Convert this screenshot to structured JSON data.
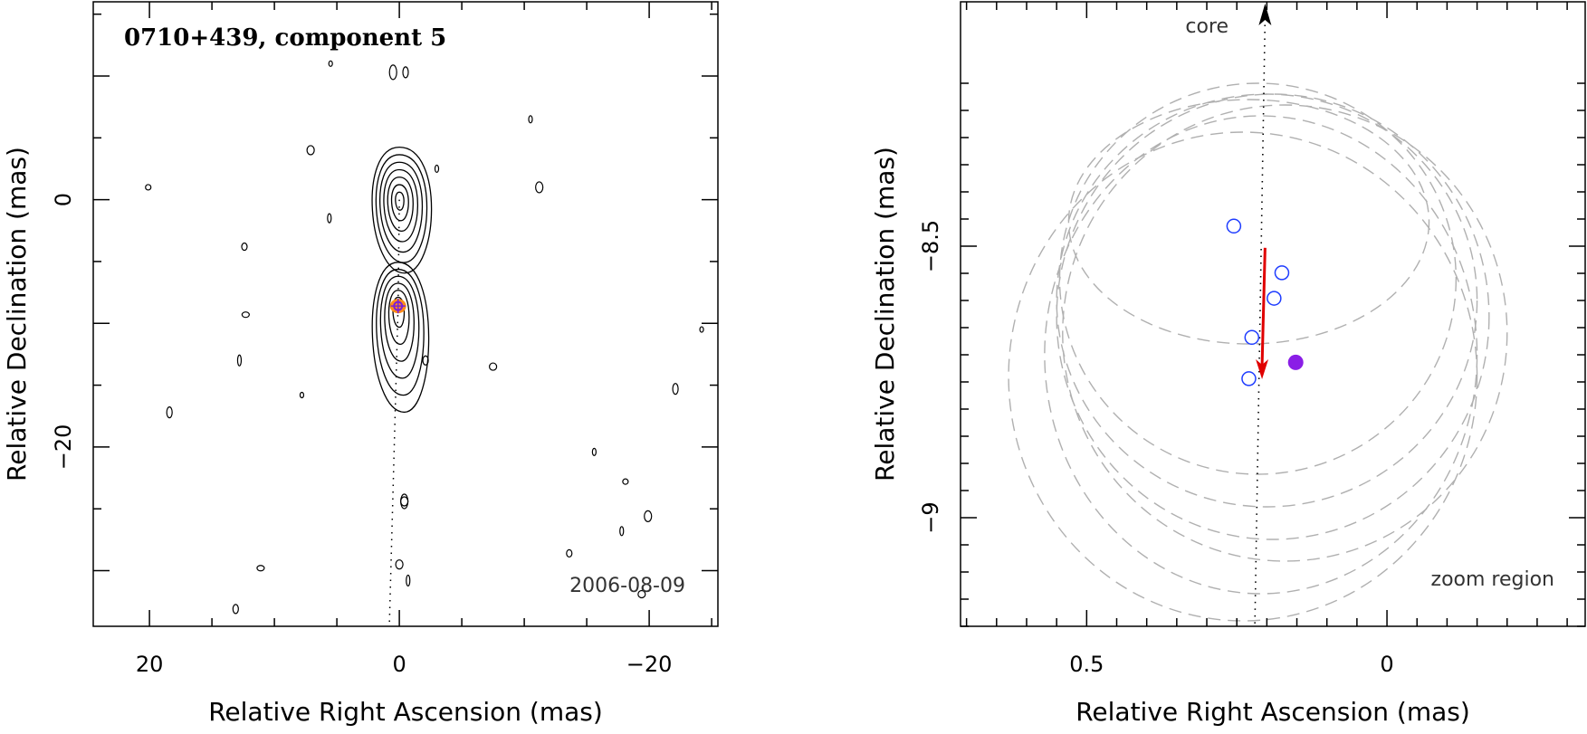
{
  "chart_data": [
    {
      "type": "contour",
      "title": "0710+439, component 5",
      "date_label": "2006-08-09",
      "xlabel": "Relative Right Ascension (mas)",
      "ylabel": "Relative Declination (mas)",
      "xlim": [
        24.5,
        -25.5
      ],
      "ylim": [
        -34.5,
        16
      ],
      "xticks": [
        {
          "v": 20,
          "label": "20"
        },
        {
          "v": 0,
          "label": "0"
        },
        {
          "v": -20,
          "label": "−20"
        }
      ],
      "yticks": [
        {
          "v": 0,
          "label": "0"
        },
        {
          "v": -20,
          "label": "−20"
        }
      ],
      "core": {
        "x": 0,
        "y": 0,
        "levels": [
          0.4,
          0.8,
          1.2,
          1.6,
          2.0,
          2.4,
          2.8
        ]
      },
      "component": {
        "x": 0.1,
        "y": -8.6,
        "levels": [
          0.5,
          0.9,
          1.3,
          1.7,
          2.1,
          2.5
        ]
      },
      "noise_islands": [
        {
          "x": 5.5,
          "y": 11
        },
        {
          "x": -0.5,
          "y": 10.3
        },
        {
          "x": 7.1,
          "y": 4
        },
        {
          "x": -10.5,
          "y": 6.5
        },
        {
          "x": 20.1,
          "y": 1
        },
        {
          "x": -11.2,
          "y": 1
        },
        {
          "x": 5.6,
          "y": -1.5
        },
        {
          "x": 12.4,
          "y": -3.8
        },
        {
          "x": 12.3,
          "y": -9.3
        },
        {
          "x": 12.8,
          "y": -13
        },
        {
          "x": -2.1,
          "y": -13
        },
        {
          "x": -7.5,
          "y": -13.5
        },
        {
          "x": 7.8,
          "y": -15.8
        },
        {
          "x": 18.4,
          "y": -17.2
        },
        {
          "x": -0.4,
          "y": -24.4
        },
        {
          "x": -15.6,
          "y": -20.4
        },
        {
          "x": -18.1,
          "y": -22.8
        },
        {
          "x": -19.9,
          "y": -25.6
        },
        {
          "x": -17.8,
          "y": -26.8
        },
        {
          "x": -13.6,
          "y": -28.6
        },
        {
          "x": 11.1,
          "y": -29.8
        },
        {
          "x": -0.7,
          "y": -30.8
        },
        {
          "x": 13.1,
          "y": -33.1
        },
        {
          "x": -19.4,
          "y": -31.9
        },
        {
          "x": -24.2,
          "y": -10.5
        },
        {
          "x": -22.1,
          "y": -15.3
        },
        {
          "x": 0,
          "y": -29.5
        },
        {
          "x": -3,
          "y": 2.5
        }
      ],
      "jet_path": [
        {
          "x": 0,
          "y": 0
        },
        {
          "x": 0.1,
          "y": -8.6
        },
        {
          "x": 0.8,
          "y": -34.5
        }
      ]
    },
    {
      "type": "scatter",
      "title": "",
      "xlabel": "Relative Right Ascension (mas)",
      "ylabel": "Relative Declination (mas)",
      "xlim": [
        0.71,
        -0.33
      ],
      "ylim": [
        -9.2,
        -8.05
      ],
      "xticks": [
        {
          "v": 0.5,
          "label": "0.5"
        },
        {
          "v": 0,
          "label": "0"
        }
      ],
      "yticks": [
        {
          "v": -8.5,
          "label": "−8.5"
        },
        {
          "v": -9,
          "label": "−9"
        }
      ],
      "core_label": "core",
      "zoom_label": "zoom region",
      "points_open": [
        {
          "x": 0.255,
          "y": -8.463
        },
        {
          "x": 0.175,
          "y": -8.549
        },
        {
          "x": 0.188,
          "y": -8.596
        },
        {
          "x": 0.225,
          "y": -8.668
        },
        {
          "x": 0.23,
          "y": -8.744
        }
      ],
      "point_filled": {
        "x": 0.152,
        "y": -8.714
      },
      "motion_vector": {
        "x0": 0.203,
        "y0": -8.503,
        "x1": 0.208,
        "y1": -8.745
      },
      "core_line": {
        "x0": 0.203,
        "y0": -8.05,
        "x1": 0.22,
        "y1": -9.2
      },
      "ellipses": [
        {
          "cx": 0.23,
          "cy": -8.455,
          "rx": 0.3,
          "ry": 0.225
        },
        {
          "cx": 0.215,
          "cy": -8.56,
          "rx": 0.33,
          "ry": 0.36
        },
        {
          "cx": 0.2,
          "cy": -8.6,
          "rx": 0.35,
          "ry": 0.38
        },
        {
          "cx": 0.19,
          "cy": -8.63,
          "rx": 0.36,
          "ry": 0.41
        },
        {
          "cx": 0.17,
          "cy": -8.66,
          "rx": 0.37,
          "ry": 0.42
        },
        {
          "cx": 0.21,
          "cy": -8.7,
          "rx": 0.36,
          "ry": 0.44
        },
        {
          "cx": 0.24,
          "cy": -8.74,
          "rx": 0.39,
          "ry": 0.45
        }
      ]
    }
  ],
  "colors": {
    "contour": "#000000",
    "ellipse": "#b0b0b0",
    "open_point": "#1e3cff",
    "filled_point": "#8a1ee6",
    "motion_arrow": "#e00000",
    "marker_orange": "#ff8c1a",
    "marker_purple": "#7a1fd6"
  }
}
